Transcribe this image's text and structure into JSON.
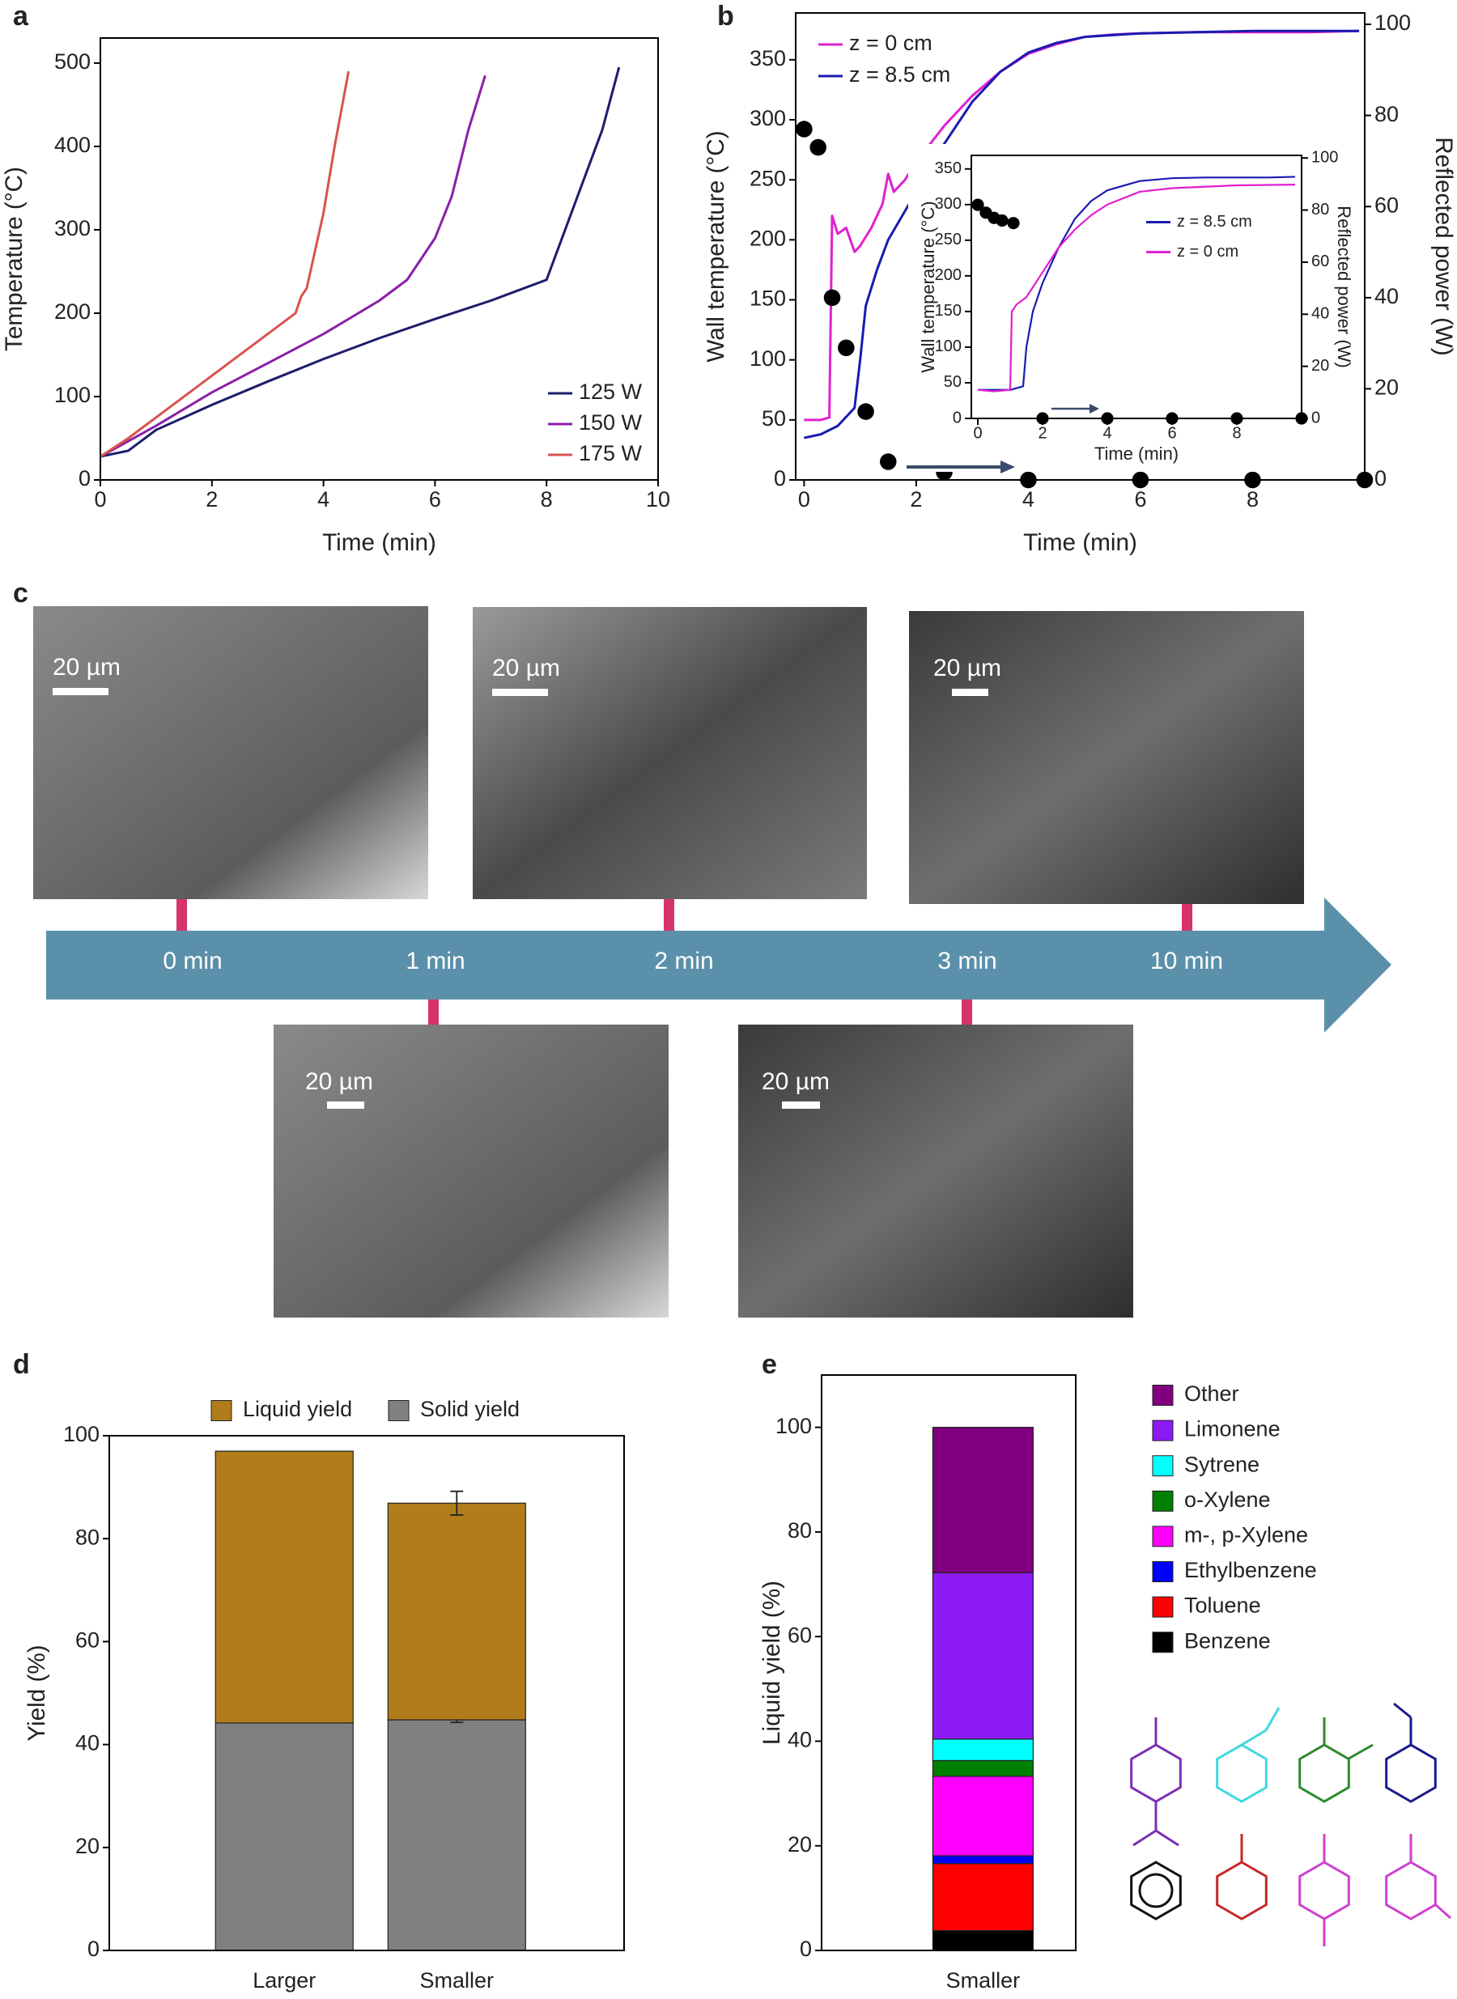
{
  "panel_labels": [
    "a",
    "b",
    "c",
    "d",
    "e"
  ],
  "chart_data": [
    {
      "type": "line",
      "x_label": "Time (min)",
      "y_label": "Temperature (°C)",
      "xlim": [
        0,
        10
      ],
      "ylim": [
        0,
        530
      ],
      "xticks": [
        0,
        2,
        4,
        6,
        8,
        10
      ],
      "yticks": [
        0,
        100,
        200,
        300,
        400,
        500
      ],
      "legend": "lower right",
      "series": [
        {
          "name": "125 W",
          "color": "#1c1c6b",
          "x": [
            0,
            0.5,
            1,
            2,
            3,
            4,
            5,
            6,
            7,
            8,
            8.5,
            9,
            9.3
          ],
          "values": [
            28,
            35,
            60,
            90,
            118,
            145,
            170,
            193,
            215,
            240,
            330,
            420,
            495
          ]
        },
        {
          "name": "150 W",
          "color": "#8a1fa8",
          "x": [
            0,
            1,
            2,
            3,
            4,
            4.5,
            5,
            5.5,
            6,
            6.3,
            6.6,
            6.9
          ],
          "values": [
            28,
            65,
            105,
            140,
            175,
            195,
            215,
            240,
            290,
            340,
            420,
            485
          ]
        },
        {
          "name": "175 W",
          "color": "#d9534f",
          "x": [
            0,
            0.5,
            1,
            2,
            3,
            3.5,
            3.6,
            3.7,
            4,
            4.2,
            4.45
          ],
          "values": [
            28,
            50,
            75,
            125,
            175,
            200,
            220,
            230,
            320,
            400,
            490
          ]
        }
      ]
    },
    {
      "type": "line",
      "x_label": "Time (min)",
      "y_label": "Wall temperature (°C)",
      "y2_label": "Reflected power (W)",
      "xlim": [
        -0.15,
        10
      ],
      "ylim": [
        0,
        389
      ],
      "y2lim": [
        0,
        102.5
      ],
      "xticks": [
        0,
        2,
        4,
        6,
        8
      ],
      "yticks": [
        0,
        50,
        100,
        150,
        200,
        250,
        300,
        350
      ],
      "y2ticks": [
        0,
        20,
        40,
        60,
        80,
        100
      ],
      "legend": "upper left",
      "series": [
        {
          "name": "z = 0 cm",
          "color": "#e020d0",
          "x": [
            0,
            0.3,
            0.45,
            0.5,
            0.6,
            0.75,
            0.9,
            1,
            1.2,
            1.4,
            1.5,
            1.6,
            1.8,
            2,
            2.5,
            3,
            3.5,
            4,
            4.5,
            5,
            5.5,
            6,
            7,
            8,
            9,
            9.9
          ],
          "values": [
            50,
            50,
            52,
            220,
            205,
            210,
            190,
            195,
            210,
            230,
            255,
            240,
            250,
            265,
            295,
            320,
            340,
            355,
            363,
            369,
            371,
            372,
            373,
            373,
            373,
            374
          ]
        },
        {
          "name": "z = 8.5 cm",
          "color": "#1a1ab0",
          "x": [
            0,
            0.3,
            0.6,
            0.9,
            1,
            1.1,
            1.3,
            1.5,
            2,
            2.5,
            3,
            3.5,
            4,
            4.5,
            5,
            6,
            7,
            8,
            9,
            9.9
          ],
          "values": [
            35,
            38,
            45,
            60,
            100,
            145,
            175,
            200,
            240,
            280,
            315,
            340,
            356,
            364,
            369,
            372,
            373,
            374,
            374,
            374
          ]
        },
        {
          "color": "#000000",
          "mode": "markers",
          "axis": "y2",
          "x": [
            0,
            0.25,
            0.5,
            0.75,
            1.1,
            1.5,
            2.5,
            4,
            6,
            8,
            10
          ],
          "values": [
            77,
            73,
            40,
            29,
            15,
            4,
            1.7,
            0,
            0,
            0,
            0
          ]
        }
      ]
    },
    {
      "type": "line",
      "x_label": "Time (min)",
      "y_label": "Wall temperature (°C)",
      "y2_label": "Reflected power (W)",
      "xlim": [
        -0.2,
        10
      ],
      "ylim": [
        0,
        369
      ],
      "y2lim": [
        0,
        101
      ],
      "xticks": [
        0,
        2,
        4,
        6,
        8
      ],
      "yticks": [
        0,
        50,
        100,
        150,
        200,
        250,
        300,
        350
      ],
      "y2ticks": [
        0,
        20,
        40,
        60,
        80,
        100
      ],
      "legend": "center right",
      "series": [
        {
          "name": "z = 8.5 cm",
          "color": "#1a1ab0",
          "x": [
            0,
            0.5,
            1,
            1.4,
            1.5,
            1.7,
            2,
            2.5,
            3,
            3.5,
            4,
            5,
            6,
            7,
            8,
            9,
            9.8
          ],
          "values": [
            40,
            40,
            40,
            45,
            100,
            150,
            190,
            240,
            280,
            305,
            320,
            333,
            337,
            338,
            338,
            338,
            339
          ]
        },
        {
          "name": "z = 0 cm",
          "color": "#e020d0",
          "x": [
            0,
            0.5,
            1,
            1.05,
            1.2,
            1.5,
            2,
            2.5,
            3,
            3.5,
            4,
            5,
            6,
            7,
            8,
            9.8
          ],
          "values": [
            40,
            38,
            40,
            150,
            160,
            170,
            205,
            240,
            265,
            285,
            300,
            318,
            323,
            325,
            327,
            328
          ]
        },
        {
          "color": "#000000",
          "mode": "markers",
          "axis": "y2",
          "x": [
            0,
            0.25,
            0.5,
            0.75,
            1.1,
            2,
            4,
            6,
            8,
            10
          ],
          "values": [
            82,
            79,
            77,
            76,
            75,
            0,
            0,
            0,
            0,
            0
          ]
        }
      ]
    },
    {
      "type": "bar",
      "stacked": true,
      "y_label": "Yield (%)",
      "categories": [
        "Larger",
        "Smaller"
      ],
      "ylim": [
        0,
        100
      ],
      "yticks": [
        0,
        20,
        40,
        60,
        80,
        100
      ],
      "legend": "top",
      "series": [
        {
          "name": "Solid yield",
          "color": "#808080",
          "values": [
            44.2,
            44.8
          ],
          "errors": [
            null,
            0.5
          ]
        },
        {
          "name": "Liquid yield",
          "color": "#b07d1a",
          "values": [
            52.8,
            42.1
          ],
          "errors": [
            null,
            2.3
          ]
        }
      ]
    },
    {
      "type": "bar",
      "stacked": true,
      "y_label": "Liquid yield (%)",
      "categories": [
        "Smaller"
      ],
      "ylim": [
        0,
        110
      ],
      "yticks": [
        0,
        20,
        40,
        60,
        80,
        100
      ],
      "legend": "right",
      "series": [
        {
          "name": "Benzene",
          "color": "#000000",
          "values": [
            3.8
          ]
        },
        {
          "name": "Toluene",
          "color": "#ff0000",
          "values": [
            12.8
          ]
        },
        {
          "name": "Ethylbenzene",
          "color": "#0000ff",
          "values": [
            1.5
          ]
        },
        {
          "name": "m-, p-Xylene",
          "color": "#ff00ff",
          "values": [
            15.2
          ]
        },
        {
          "name": "o-Xylene",
          "color": "#008000",
          "values": [
            3.0
          ]
        },
        {
          "name": "Sytrene",
          "color": "#00ffff",
          "values": [
            4.1
          ]
        },
        {
          "name": "Limonene",
          "color": "#8b1af5",
          "values": [
            31.8
          ]
        },
        {
          "name": "Other",
          "color": "#800080",
          "values": [
            27.8
          ]
        }
      ]
    }
  ],
  "timeline": {
    "steps": [
      "0 min",
      "1 min",
      "2 min",
      "3 min",
      "10 min"
    ],
    "scale_bar": "20 µm"
  }
}
